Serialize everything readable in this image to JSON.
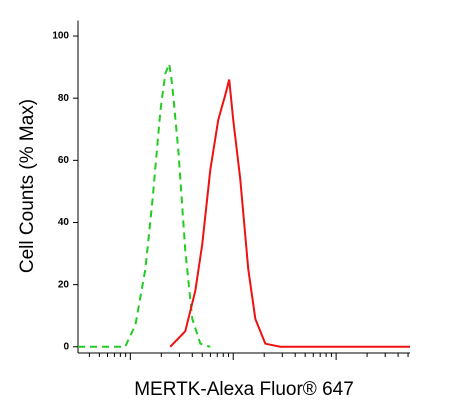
{
  "chart_data": {
    "type": "line",
    "y_label": "Cell Counts (% Max)",
    "x_label": "MERTK-Alexa Fluor® 647",
    "x_log": true,
    "xlim": [
      3.1,
      5224
    ],
    "xticks": [
      10,
      100,
      1000
    ],
    "ylim": [
      -2,
      105
    ],
    "yticks": [
      0,
      20,
      40,
      60,
      80,
      100
    ],
    "series": [
      {
        "color": "#22cc22",
        "dash": true,
        "x": [
          3.1,
          5.1,
          8.9,
          11.2,
          14,
          16.4,
          19.6,
          21.9,
          23.9,
          25.6,
          29.3,
          34.2,
          40,
          47.9,
          59.9
        ],
        "values": [
          0,
          0,
          0,
          7,
          25,
          47,
          76,
          88,
          91,
          84,
          63,
          31,
          9,
          1,
          0
        ]
      },
      {
        "color": "#ee1111",
        "dash": false,
        "x": [
          24.4,
          34.2,
          42.8,
          50,
          59.9,
          71.5,
          83.6,
          91.4,
          100,
          117,
          140,
          164,
          205,
          286,
          5224
        ],
        "values": [
          0,
          5,
          18,
          33,
          57,
          73,
          81,
          86,
          73,
          54,
          25,
          9,
          1,
          0,
          0
        ]
      }
    ]
  }
}
